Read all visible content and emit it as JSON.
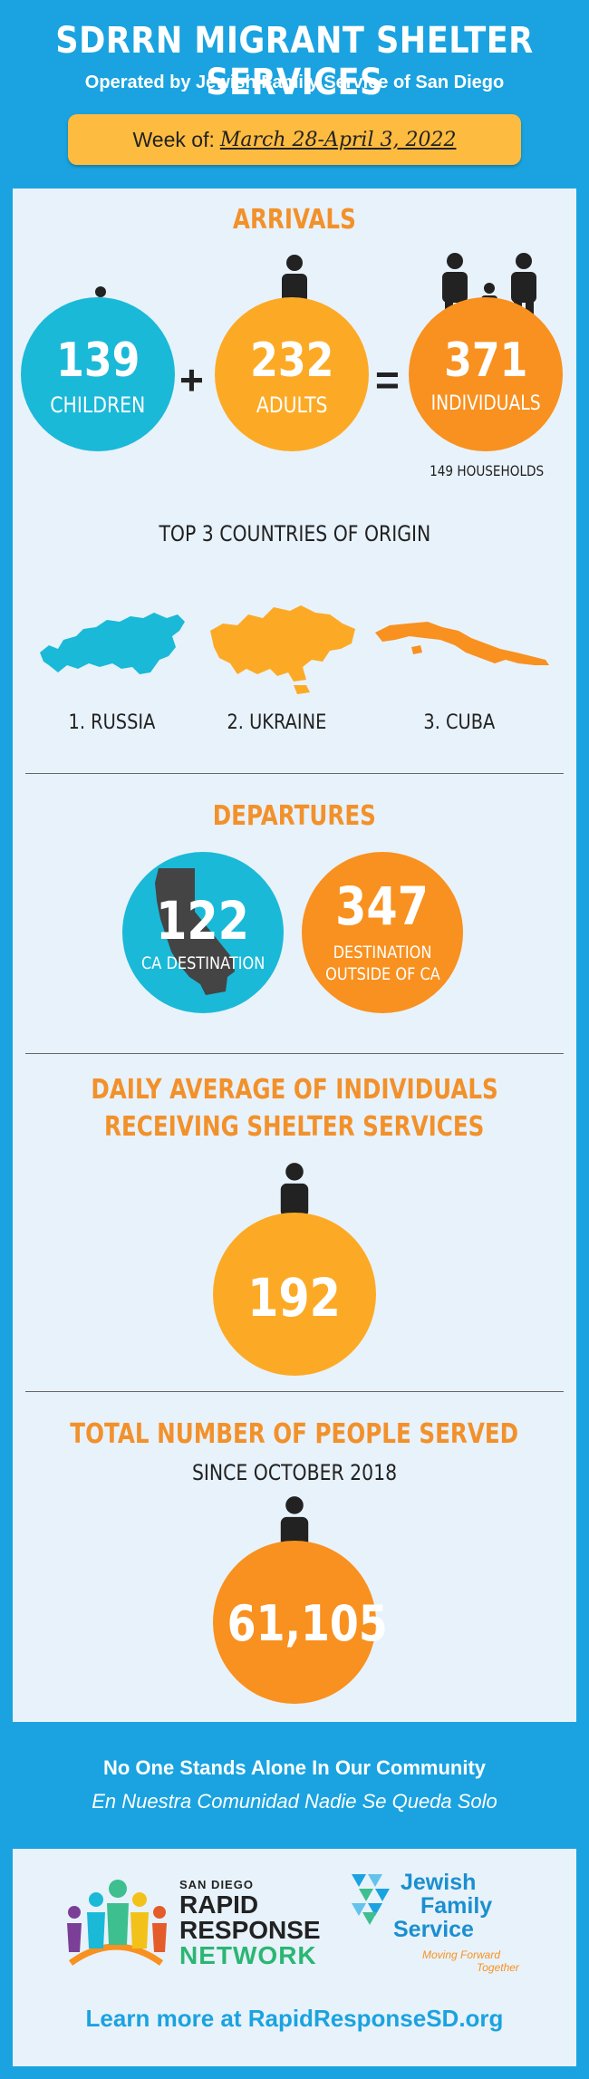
{
  "header": {
    "title": "SDRRN MIGRANT SHELTER SERVICES",
    "subtitle": "Operated by Jewish Family Service of San Diego",
    "week_label": "Week of:",
    "week_dates": "March 28-April 3, 2022"
  },
  "arrivals": {
    "title": "ARRIVALS",
    "children": {
      "value": "139",
      "label": "CHILDREN"
    },
    "plus": "+",
    "adults": {
      "value": "232",
      "label": "ADULTS"
    },
    "equals": "=",
    "individuals": {
      "value": "371",
      "label": "INDIVIDUALS"
    },
    "households": "149 HOUSEHOLDS"
  },
  "countries": {
    "title": "TOP 3 COUNTRIES OF ORIGIN",
    "items": [
      "1. RUSSIA",
      "2. UKRAINE",
      "3. CUBA"
    ]
  },
  "departures": {
    "title": "DEPARTURES",
    "ca": {
      "value": "122",
      "label": "CA DESTINATION"
    },
    "outside": {
      "value": "347",
      "label_line1": "DESTINATION",
      "label_line2": "OUTSIDE OF CA"
    }
  },
  "daily": {
    "title_line1": "DAILY AVERAGE OF INDIVIDUALS",
    "title_line2": "RECEIVING SHELTER SERVICES",
    "value": "192"
  },
  "total": {
    "title": "TOTAL NUMBER OF PEOPLE SERVED",
    "subtitle": "SINCE OCTOBER 2018",
    "value": "61,105"
  },
  "footer": {
    "tagline_en": "No One Stands Alone In Our Community",
    "tagline_es": "En Nuestra Comunidad Nadie Se Queda Solo",
    "sdrrn_small": "SAN DIEGO",
    "sdrrn_line1": "RAPID",
    "sdrrn_line2": "RESPONSE",
    "sdrrn_line3": "NETWORK",
    "jfs_line1": "Jewish",
    "jfs_line2": "Family",
    "jfs_line3": "Service",
    "jfs_tag1": "Moving Forward",
    "jfs_tag2": "Together",
    "learn_more": "Learn more at RapidResponseSD.org"
  },
  "colors": {
    "background": "#1aa3e0",
    "orange": "#f8911f",
    "yellow": "#fcaa25",
    "teal": "#1ab9d8",
    "week_box": "#fdbb3f"
  }
}
